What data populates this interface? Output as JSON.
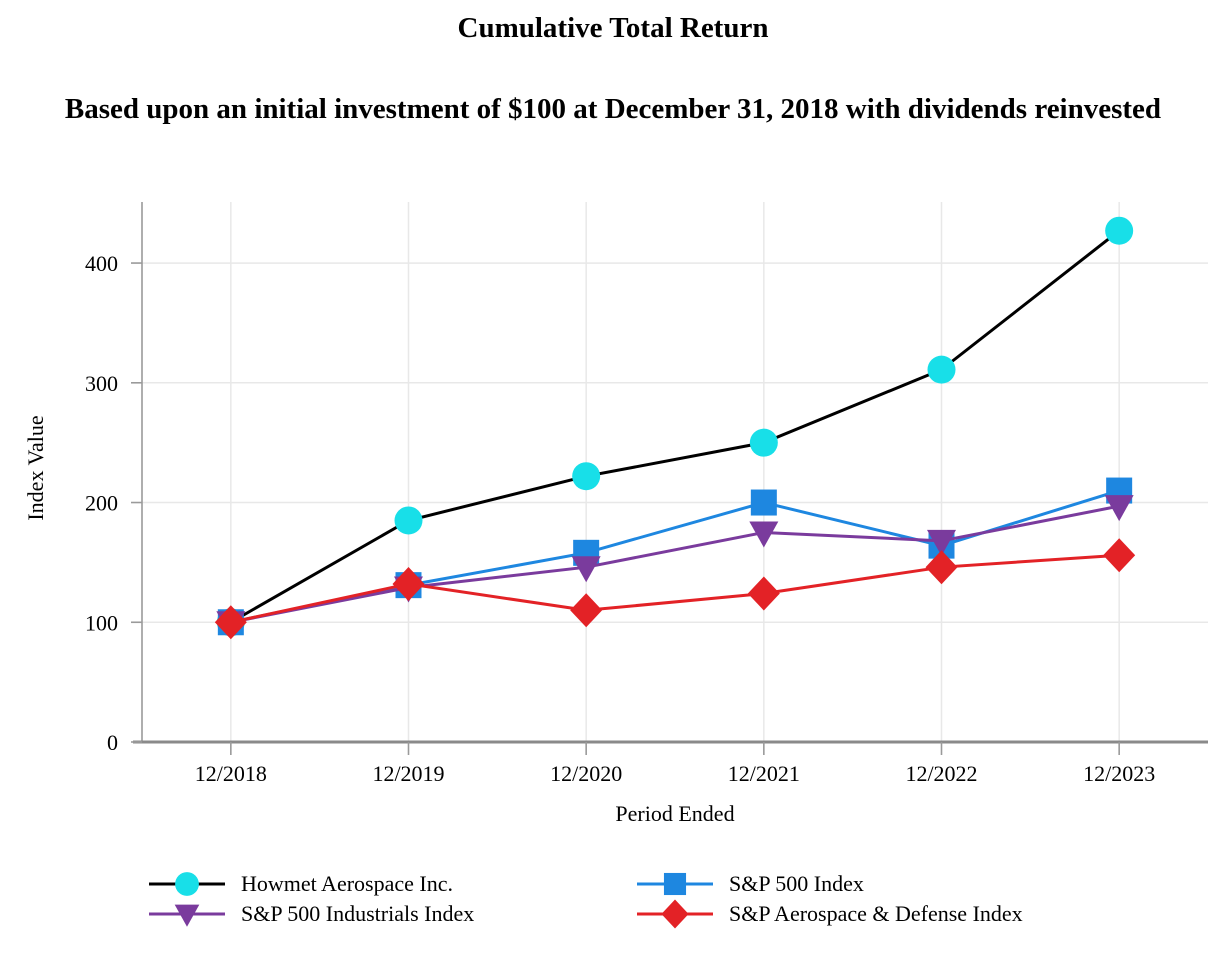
{
  "chart_data": {
    "type": "line",
    "title": "Cumulative Total Return",
    "subtitle": "Based upon an initial investment of $100 at December 31, 2018 with dividends reinvested",
    "xlabel": "Period Ended",
    "ylabel": "Index Value",
    "categories": [
      "12/2018",
      "12/2019",
      "12/2020",
      "12/2021",
      "12/2022",
      "12/2023"
    ],
    "yticks": [
      0,
      100,
      200,
      300,
      400
    ],
    "ylim": [
      0,
      451
    ],
    "grid": true,
    "legend_position": "bottom",
    "legend_columns": 2,
    "series": [
      {
        "name": "Howmet Aerospace Inc.",
        "marker": "circle",
        "line_color": "#000000",
        "marker_color": "#18DFE8",
        "values": [
          100,
          185,
          222,
          250,
          311,
          427
        ]
      },
      {
        "name": "S&P 500 Index",
        "marker": "square",
        "line_color": "#1E87E0",
        "marker_color": "#1E87E0",
        "values": [
          100,
          131,
          158,
          200,
          164,
          210
        ]
      },
      {
        "name": "S&P 500 Industrials Index",
        "marker": "triangle-down",
        "line_color": "#7A3B9D",
        "marker_color": "#7A3B9D",
        "values": [
          100,
          129,
          146,
          175,
          168,
          197
        ]
      },
      {
        "name": "S&P Aerospace & Defense Index",
        "marker": "diamond",
        "line_color": "#E32226",
        "marker_color": "#E32226",
        "values": [
          100,
          132,
          110,
          124,
          146,
          156
        ]
      }
    ]
  }
}
